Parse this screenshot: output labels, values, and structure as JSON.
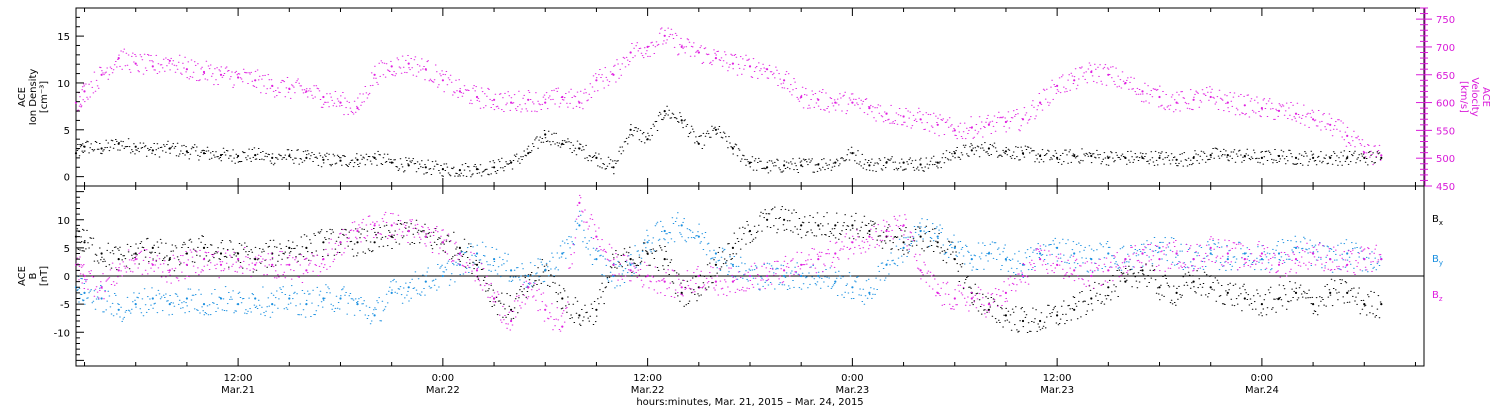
{
  "colors": {
    "black": "#000000",
    "magenta": "#e020e0",
    "blue": "#1a8fe0",
    "frame": "#000000"
  },
  "xaxis": {
    "tick_hours": [
      "12:00",
      "0:00",
      "12:00",
      "0:00",
      "12:00",
      "0:00"
    ],
    "tick_dates": [
      "Mar.21",
      "Mar.22",
      "Mar.22",
      "Mar.23",
      "Mar.23",
      "Mar.24"
    ],
    "title": "hours:minutes, Mar. 21, 2015 – Mar. 24, 2015"
  },
  "chart_data": [
    {
      "type": "scatter",
      "panel": "top",
      "x_unit": "hours since Mar. 21, 2015 00:00",
      "xlim": [
        2.5,
        81.5
      ],
      "ylabel_lines": [
        "ACE",
        "Ion Density",
        "[cm⁻³]"
      ],
      "y2label_lines": [
        "ACE",
        "Velocity",
        "[km/s]"
      ],
      "ylim_left": [
        -1,
        18
      ],
      "yticks_left": [
        "0",
        "5",
        "10",
        "15"
      ],
      "ylim_right": [
        450,
        770
      ],
      "yticks_right": [
        "450",
        "500",
        "550",
        "600",
        "650",
        "700",
        "750"
      ],
      "series": [
        {
          "color": "black",
          "axis": "left",
          "x": [
            2.5,
            3,
            4,
            5,
            6,
            7,
            8,
            9,
            10,
            11,
            12,
            13,
            14,
            15,
            16,
            17,
            18,
            19,
            20,
            21,
            22,
            23,
            24,
            25,
            26,
            27,
            28,
            29,
            30,
            31,
            32,
            33,
            34,
            35,
            36,
            37,
            38,
            39,
            40,
            41,
            42,
            43,
            44,
            45,
            46,
            47,
            48,
            49,
            50,
            51,
            52,
            53,
            54,
            55,
            56,
            57,
            58,
            59,
            60,
            61,
            62,
            63,
            64,
            65,
            66,
            67,
            68,
            69,
            70,
            71,
            72,
            73,
            74,
            75,
            76,
            77,
            78,
            79
          ],
          "y": [
            2.5,
            3.2,
            3.0,
            3.5,
            3.2,
            2.8,
            3.0,
            2.7,
            2.5,
            2.3,
            2.2,
            2.3,
            2.0,
            2.2,
            2.0,
            1.8,
            1.7,
            1.8,
            2.0,
            1.5,
            1.2,
            1.0,
            0.8,
            0.7,
            0.8,
            1.0,
            1.5,
            2.5,
            4.5,
            3.5,
            3.0,
            2.0,
            1.0,
            5.0,
            4.0,
            7.0,
            6.0,
            3.5,
            5.0,
            3.0,
            1.5,
            1.0,
            1.2,
            1.2,
            1.3,
            1.5,
            2.5,
            1.2,
            1.5,
            1.5,
            1.3,
            1.5,
            2.5,
            2.8,
            3.0,
            2.7,
            2.5,
            2.2,
            2.0,
            2.2,
            2.2,
            2.0,
            2.0,
            2.0,
            2.0,
            1.8,
            2.0,
            2.3,
            2.3,
            2.2,
            2.0,
            2.2,
            2.0,
            2.0,
            2.0,
            2.0,
            2.0,
            2.0
          ]
        },
        {
          "color": "magenta",
          "axis": "right",
          "x": [
            2.5,
            3,
            4,
            5,
            6,
            7,
            8,
            9,
            10,
            11,
            12,
            13,
            14,
            15,
            16,
            17,
            18,
            19,
            20,
            21,
            22,
            23,
            24,
            25,
            26,
            27,
            28,
            29,
            30,
            31,
            32,
            33,
            34,
            35,
            36,
            37,
            38,
            39,
            40,
            41,
            42,
            43,
            44,
            45,
            46,
            47,
            48,
            49,
            50,
            51,
            52,
            53,
            54,
            55,
            56,
            57,
            58,
            59,
            60,
            61,
            62,
            63,
            64,
            65,
            66,
            67,
            68,
            69,
            70,
            71,
            72,
            73,
            74,
            75,
            76,
            77,
            78,
            79
          ],
          "y": [
            600,
            620,
            650,
            680,
            670,
            665,
            675,
            660,
            655,
            650,
            645,
            640,
            630,
            625,
            620,
            610,
            600,
            590,
            650,
            665,
            670,
            660,
            640,
            620,
            610,
            605,
            600,
            605,
            600,
            610,
            600,
            640,
            650,
            690,
            700,
            720,
            700,
            690,
            680,
            670,
            665,
            660,
            640,
            610,
            605,
            600,
            600,
            590,
            580,
            575,
            570,
            560,
            550,
            555,
            560,
            565,
            570,
            600,
            630,
            640,
            655,
            650,
            635,
            620,
            610,
            600,
            605,
            610,
            600,
            595,
            590,
            585,
            580,
            570,
            560,
            540,
            510,
            505
          ]
        }
      ]
    },
    {
      "type": "scatter",
      "panel": "bottom",
      "x_unit": "hours since Mar. 21, 2015 00:00",
      "xlim": [
        2.5,
        81.5
      ],
      "ylabel_lines": [
        "ACE",
        "B",
        "[nT]"
      ],
      "ylim": [
        -16,
        16
      ],
      "yticks": [
        "-10",
        "-5",
        "0",
        "5",
        "10"
      ],
      "legend_position": "right",
      "series": [
        {
          "name": "Bx",
          "color": "black",
          "x": [
            2.5,
            3,
            4,
            5,
            6,
            7,
            8,
            9,
            10,
            11,
            12,
            13,
            14,
            15,
            16,
            17,
            18,
            19,
            20,
            21,
            22,
            23,
            24,
            25,
            26,
            27,
            28,
            29,
            30,
            31,
            32,
            33,
            34,
            35,
            36,
            37,
            38,
            39,
            40,
            41,
            42,
            43,
            44,
            45,
            46,
            47,
            48,
            49,
            50,
            51,
            52,
            53,
            54,
            55,
            56,
            57,
            58,
            59,
            60,
            61,
            62,
            63,
            64,
            65,
            66,
            67,
            68,
            69,
            70,
            71,
            72,
            73,
            74,
            75,
            76,
            77,
            78,
            79
          ],
          "y": [
            7,
            6,
            4,
            3,
            4,
            5,
            3,
            4,
            5,
            4,
            4,
            3,
            4,
            5,
            5,
            6,
            6,
            6,
            6,
            7,
            8,
            7,
            6,
            5,
            2,
            -4,
            -6,
            -2,
            1,
            -4,
            -7,
            -6,
            2,
            3,
            4,
            3,
            -3,
            -2,
            2,
            5,
            8,
            10,
            10,
            9,
            9,
            9,
            9,
            8,
            7,
            6,
            7,
            6,
            3,
            -3,
            -6,
            -7,
            -8,
            -8,
            -7,
            -6,
            -4,
            -2,
            -1,
            1,
            -2,
            -3,
            -1,
            -2,
            -3,
            -4,
            -5,
            -4,
            -3,
            -5,
            -3,
            -3,
            -5,
            -5
          ]
        },
        {
          "name": "By",
          "color": "blue",
          "x": [
            2.5,
            3,
            4,
            5,
            6,
            7,
            8,
            9,
            10,
            11,
            12,
            13,
            14,
            15,
            16,
            17,
            18,
            19,
            20,
            21,
            22,
            23,
            24,
            25,
            26,
            27,
            28,
            29,
            30,
            31,
            32,
            33,
            34,
            35,
            36,
            37,
            38,
            39,
            40,
            41,
            42,
            43,
            44,
            45,
            46,
            47,
            48,
            49,
            50,
            51,
            52,
            53,
            54,
            55,
            56,
            57,
            58,
            59,
            60,
            61,
            62,
            63,
            64,
            65,
            66,
            67,
            68,
            69,
            70,
            71,
            72,
            73,
            74,
            75,
            76,
            77,
            78,
            79
          ],
          "y": [
            -2,
            -3,
            -4,
            -6,
            -5,
            -4,
            -5,
            -4,
            -5,
            -4,
            -5,
            -4,
            -5,
            -4,
            -5,
            -4,
            -4,
            -5,
            -7,
            -3,
            -2,
            -1,
            0,
            2,
            4,
            3,
            1,
            0,
            1,
            4,
            9,
            3,
            0,
            2,
            6,
            8,
            9,
            7,
            4,
            2,
            0,
            0,
            0,
            0,
            0,
            -1,
            -2,
            -3,
            2,
            5,
            8,
            7,
            5,
            3,
            4,
            3,
            2,
            4,
            5,
            4,
            3,
            4,
            3,
            4,
            5,
            4,
            3,
            4,
            3,
            4,
            3,
            4,
            5,
            4,
            3,
            4,
            3,
            3
          ]
        },
        {
          "name": "Bz",
          "color": "magenta",
          "x": [
            2.5,
            3,
            4,
            5,
            6,
            7,
            8,
            9,
            10,
            11,
            12,
            13,
            14,
            15,
            16,
            17,
            18,
            19,
            20,
            21,
            22,
            23,
            24,
            25,
            26,
            27,
            28,
            29,
            30,
            31,
            32,
            33,
            34,
            35,
            36,
            37,
            38,
            39,
            40,
            41,
            42,
            43,
            44,
            45,
            46,
            47,
            48,
            49,
            50,
            51,
            52,
            53,
            54,
            55,
            56,
            57,
            58,
            59,
            60,
            61,
            62,
            63,
            64,
            65,
            66,
            67,
            68,
            69,
            70,
            71,
            72,
            73,
            74,
            75,
            76,
            77,
            78,
            79
          ],
          "y": [
            2,
            0,
            -2,
            1,
            3,
            2,
            1,
            2,
            3,
            2,
            3,
            2,
            2,
            2,
            1,
            3,
            6,
            8,
            9,
            9,
            8,
            7,
            6,
            4,
            1,
            -4,
            -8,
            -2,
            -6,
            -9,
            13,
            7,
            2,
            1,
            0,
            -1,
            -2,
            0,
            -1,
            -1,
            0,
            0,
            1,
            2,
            3,
            4,
            6,
            7,
            8,
            9,
            1,
            -3,
            -4,
            -4,
            -5,
            -3,
            0,
            3,
            2,
            1,
            0,
            1,
            3,
            4,
            3,
            4,
            3,
            5,
            4,
            3,
            4,
            2,
            3,
            4,
            3,
            2,
            3,
            3
          ]
        }
      ]
    }
  ]
}
